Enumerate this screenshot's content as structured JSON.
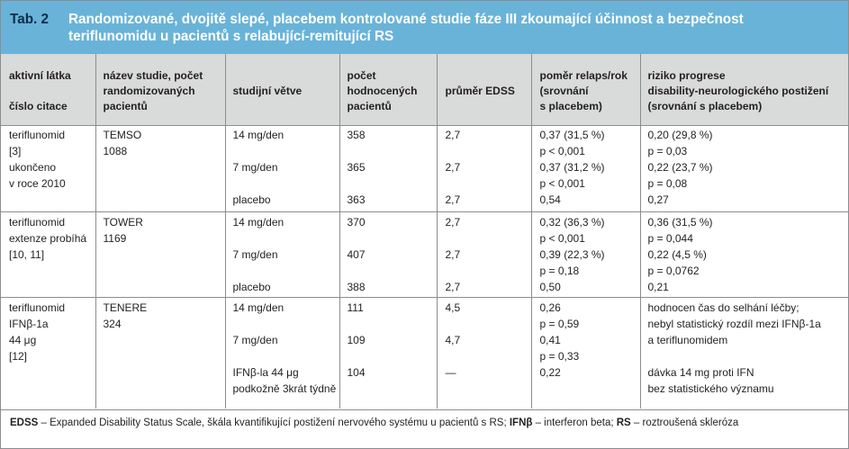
{
  "table_caption": {
    "label": "Tab. 2",
    "title_line1": "Randomizované, dvojitě slepé, placebem kontrolované studie fáze III zkoumající účinnost a bezpečnost",
    "title_line2": "teriflunomidu u pacientů s relabující-remitující RS"
  },
  "headers": {
    "col1_line1": "aktivní látka",
    "col1_line2": "číslo citace",
    "col2_line1": "název studie, počet",
    "col2_line2": "randomizovaných",
    "col2_line3": "pacientů",
    "col3": "studijní větve",
    "col4_line1": "počet",
    "col4_line2": "hodnocených",
    "col4_line3": "pacientů",
    "col5": "průměr EDSS",
    "col6_line1": "poměr relaps/rok",
    "col6_line2": "(srovnání",
    "col6_line3": "s placebem)",
    "col7_line1": "riziko progrese",
    "col7_line2": "disability-neurologického postižení",
    "col7_line3": "(srovnání s placebem)"
  },
  "studies": [
    {
      "drug_lines": [
        "teriflunomid",
        "[3]",
        "ukončeno",
        "v roce 2010"
      ],
      "study_lines": [
        "TEMSO",
        "1088"
      ],
      "arms": [
        "14 mg/den",
        "7 mg/den",
        "placebo"
      ],
      "n": [
        "358",
        "365",
        "363"
      ],
      "edss": [
        "2,7",
        "2,7",
        "2,7"
      ],
      "relapse": [
        "0,37 (31,5 %)",
        "p < 0,001",
        "0,37 (31,2 %)",
        "p < 0,001",
        "0,54"
      ],
      "progression": [
        "0,20 (29,8 %)",
        "p = 0,03",
        "0,22 (23,7 %)",
        "p = 0,08",
        "0,27"
      ]
    },
    {
      "drug_lines": [
        "teriflunomid",
        "extenze probíhá",
        "[10, 11]"
      ],
      "study_lines": [
        "TOWER",
        "1169"
      ],
      "arms": [
        "14 mg/den",
        "7 mg/den",
        "placebo"
      ],
      "n": [
        "370",
        "407",
        "388"
      ],
      "edss": [
        "2,7",
        "2,7",
        "2,7"
      ],
      "relapse": [
        "0,32 (36,3 %)",
        "p < 0,001",
        "0,39 (22,3 %)",
        "p = 0,18",
        "0,50"
      ],
      "progression": [
        "0,36 (31,5 %)",
        "p = 0,044",
        "0,22 (4,5 %)",
        "p = 0,0762",
        "0,21"
      ]
    },
    {
      "drug_lines": [
        "teriflunomid",
        "IFNβ-1a",
        "44 μg",
        "[12]"
      ],
      "study_lines": [
        "TENERE",
        "324"
      ],
      "arms": [
        "14 mg/den",
        "7 mg/den",
        "IFNβ-la 44 μg",
        "podkožně 3krát týdně"
      ],
      "n": [
        "111",
        "109",
        "104"
      ],
      "edss": [
        "4,5",
        "4,7",
        "—"
      ],
      "relapse": [
        "0,26",
        "p = 0,59",
        "0,41",
        "p = 0,33",
        "0,22"
      ],
      "progression": [
        "hodnocen čas do selhání léčby;",
        "nebyl statistický rozdíl mezi IFNβ-1a",
        "a teriflunomidem",
        "dávka 14 mg proti IFN",
        "bez statistického významu"
      ]
    }
  ],
  "footnote": {
    "abbr1": "EDSS",
    "def1": " – Expanded Disability Status Scale, škála kvantifikující postižení nervového systému u pacientů s RS; ",
    "abbr2": "IFNβ",
    "def2": " – interferon beta; ",
    "abbr3": "RS",
    "def3": " – roztroušená skleróza"
  },
  "colors": {
    "header_band": "#69b3d9",
    "label_text": "#0c2d49",
    "column_header_fill": "#d9dada",
    "rule_color": "#8a8d8f"
  }
}
